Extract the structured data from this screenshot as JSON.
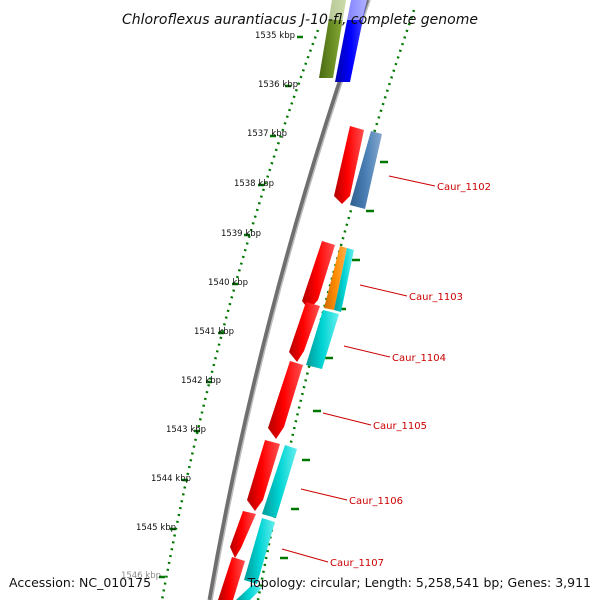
{
  "title": "Chloroflexus aurantiacus J-10-fl, complete genome",
  "footer": {
    "accession": "Accession: NC_010175",
    "summary": "Topology: circular; Length: 5,258,541 bp; Genes: 3,911"
  },
  "ruler": {
    "unit": "kbp",
    "ticks": [
      {
        "kbp": 1535,
        "label": "1535 kbp"
      },
      {
        "kbp": 1536,
        "label": "1536 kbp"
      },
      {
        "kbp": 1537,
        "label": "1537 kbp"
      },
      {
        "kbp": 1538,
        "label": "1538 kbp"
      },
      {
        "kbp": 1539,
        "label": "1539 kbp"
      },
      {
        "kbp": 1540,
        "label": "1540 kbp"
      },
      {
        "kbp": 1541,
        "label": "1541 kbp"
      },
      {
        "kbp": 1542,
        "label": "1542 kbp"
      },
      {
        "kbp": 1543,
        "label": "1543 kbp"
      },
      {
        "kbp": 1544,
        "label": "1544 kbp"
      },
      {
        "kbp": 1545,
        "label": "1545 kbp"
      },
      {
        "kbp": 1546,
        "label": "1546 kbp"
      }
    ]
  },
  "colors": {
    "backbone": "#808080",
    "ruler": "#007700",
    "cds": "#ff0000",
    "rna": "#00cccc",
    "orange": "#ff8c00",
    "steelblue": "#4a7fb5",
    "olive": "#6b8e23",
    "blue": "#0000ff",
    "label": "#cc0000"
  },
  "genes": [
    {
      "id": "Caur_1102",
      "label": "Caur_1102"
    },
    {
      "id": "Caur_1103",
      "label": "Caur_1103"
    },
    {
      "id": "Caur_1104",
      "label": "Caur_1104"
    },
    {
      "id": "Caur_1105",
      "label": "Caur_1105"
    },
    {
      "id": "Caur_1106",
      "label": "Caur_1106"
    },
    {
      "id": "Caur_1107",
      "label": "Caur_1107"
    }
  ]
}
